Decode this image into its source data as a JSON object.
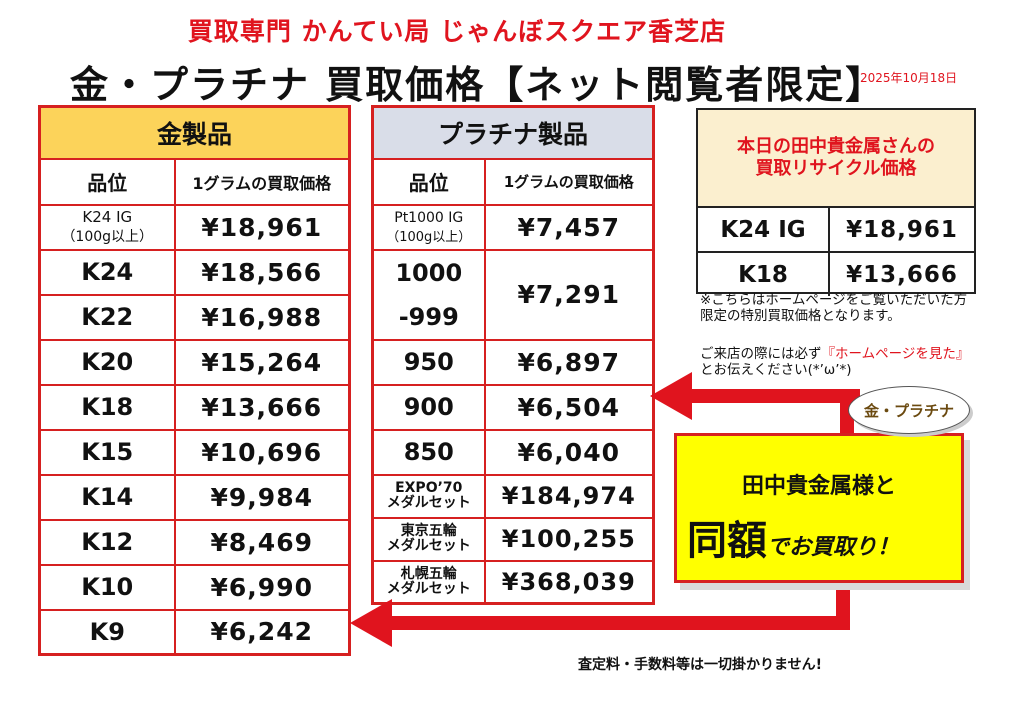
{
  "store_title": "買取専門 かんてい局 じゃんぼスクエア香芝店",
  "main_title": "金・プラチナ 買取価格【ネット閲覧者限定】",
  "date": "2025年10月18日",
  "gold": {
    "title": "金製品",
    "col_grade": "品位",
    "col_price": "1グラムの買取価格",
    "rows": [
      {
        "grade_l1": "K24 IG",
        "grade_l2": "（100g以上）",
        "price": "¥18,961"
      },
      {
        "grade": "K24",
        "price": "¥18,566"
      },
      {
        "grade": "K22",
        "price": "¥16,988"
      },
      {
        "grade": "K20",
        "price": "¥15,264"
      },
      {
        "grade": "K18",
        "price": "¥13,666"
      },
      {
        "grade": "K15",
        "price": "¥10,696"
      },
      {
        "grade": "K14",
        "price": "¥9,984"
      },
      {
        "grade": "K12",
        "price": "¥8,469"
      },
      {
        "grade": "K10",
        "price": "¥6,990"
      },
      {
        "grade": "K9",
        "price": "¥6,242"
      }
    ]
  },
  "platinum": {
    "title": "プラチナ製品",
    "col_grade": "品位",
    "col_price": "1グラムの買取価格",
    "rows": [
      {
        "grade_l1": "Pt1000 IG",
        "grade_l2": "（100g以上）",
        "price": "¥7,457"
      },
      {
        "grade_l1": "1000",
        "grade_l2": "-999",
        "price": "¥7,291"
      },
      {
        "grade": "950",
        "price": "¥6,897"
      },
      {
        "grade": "900",
        "price": "¥6,504"
      },
      {
        "grade": "850",
        "price": "¥6,040"
      },
      {
        "grade_l1": "EXPO’70",
        "grade_l2": "メダルセット",
        "price": "¥184,974"
      },
      {
        "grade_l1": "東京五輪",
        "grade_l2": "メダルセット",
        "price": "¥100,255"
      },
      {
        "grade_l1": "札幌五輪",
        "grade_l2": "メダルセット",
        "price": "¥368,039"
      }
    ]
  },
  "tanaka": {
    "head_l1": "本日の田中貴金属さんの",
    "head_l2": "買取リサイクル価格",
    "rows": [
      {
        "grade": "K24 IG",
        "price": "¥18,961"
      },
      {
        "grade": "K18",
        "price": "¥13,666"
      }
    ]
  },
  "notes": {
    "line1": "※こちらはホームページをご覧いただいた方限定の特別買取価格となります。",
    "line2_a": "ご来店の際には必ず",
    "line2_red": "『ホームページを見た』",
    "line2_b": "とお伝えください(*’ω’*)"
  },
  "bubble_text": "金・プラチナ",
  "promo": {
    "line1": "田中貴金属様と",
    "big": "同額",
    "rest": "でお買取り！"
  },
  "footnote": "査定料・手数料等は一切掛かりません!",
  "colors": {
    "red": "#e0141e",
    "gold_header": "#fcd35a",
    "platinum_header": "#d9dde8",
    "yellow": "#ffff00"
  }
}
